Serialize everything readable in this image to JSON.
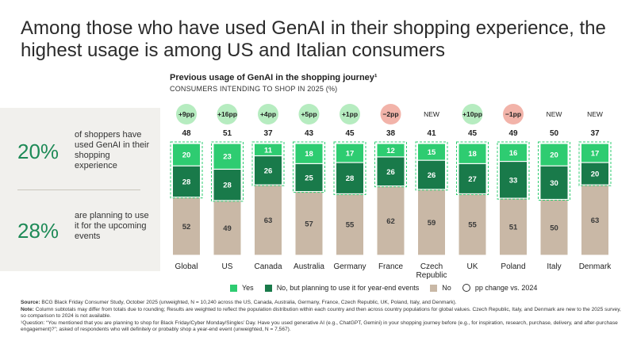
{
  "title": "Among those who have used GenAI in their shopping experience, the highest usage is among US and Italian consumers",
  "side_stats": [
    {
      "pct": "20%",
      "text": "of shoppers have used GenAI in their shopping experience"
    },
    {
      "pct": "28%",
      "text": "are planning to use it for the upcoming events"
    }
  ],
  "chart_data": {
    "type": "bar",
    "title": "Previous usage of GenAI in the shopping journey¹",
    "subtitle": "CONSUMERS INTENDING TO SHOP IN 2025 (%)",
    "categories": [
      "Global",
      "US",
      "Canada",
      "Australia",
      "Germany",
      "France",
      "Czech Republic",
      "UK",
      "Poland",
      "Italy",
      "Denmark"
    ],
    "series": [
      {
        "name": "Yes",
        "color": "#2ecc71",
        "values": [
          20,
          23,
          11,
          18,
          17,
          12,
          15,
          18,
          16,
          20,
          17
        ]
      },
      {
        "name": "No, but planning to use it for year-end events",
        "color": "#197a4a",
        "values": [
          28,
          28,
          26,
          25,
          28,
          26,
          26,
          27,
          33,
          30,
          20
        ]
      },
      {
        "name": "No",
        "color": "#c9b8a6",
        "values": [
          52,
          49,
          63,
          57,
          55,
          62,
          59,
          55,
          51,
          50,
          63
        ]
      }
    ],
    "totals": [
      "48",
      "51",
      "37",
      "43",
      "45",
      "38",
      "41",
      "45",
      "49",
      "50",
      "37"
    ],
    "pp_change": [
      "+9pp",
      "+16pp",
      "+4pp",
      "+5pp",
      "+1pp",
      "−2pp",
      "NEW",
      "+10pp",
      "−1pp",
      "NEW",
      "NEW"
    ],
    "pp_change_kind": [
      "pos",
      "pos",
      "pos",
      "pos",
      "pos",
      "neg",
      "new",
      "pos",
      "neg",
      "new",
      "new"
    ],
    "ylim": [
      0,
      100
    ]
  },
  "colors": {
    "yes": "#2ecc71",
    "planning": "#197a4a",
    "no": "#c9b8a6",
    "pos_badge": "#b6ecc0",
    "neg_badge": "#f2b3a9",
    "accent": "#1e8a57"
  },
  "legend": {
    "yes": "Yes",
    "planning": "No, but planning to use it for year-end events",
    "no": "No",
    "pp": "pp change vs. 2024"
  },
  "footnotes": {
    "source_label": "Source:",
    "source": " BCG Black Friday Consumer Study, October 2025 (unweighted, N = 10,240 across the US, Canada, Australia, Germany, France, Czech Republic, UK, Poland, Italy, and Denmark).",
    "note_label": "Note:",
    "note": " Column subtotals may differ from totals due to rounding; Results are weighted to reflect the population distribution within each country and then across country populations for global values. Czech Republic, Italy, and Denmark are new to the 2025 survey, so comparison to 2024 is not available.",
    "question": "¹Question: “You mentioned that you are planning to shop for Black Friday/Cyber Monday/Singles’ Day. Have you used generative AI (e.g., ChatGPT, Gemini) in your shopping journey before (e.g., for inspiration, research, purchase, delivery, and after-purchase engagement)?”; asked of respondents who will definitely or probably shop a year-end event (unweighted, N = 7,567)."
  }
}
